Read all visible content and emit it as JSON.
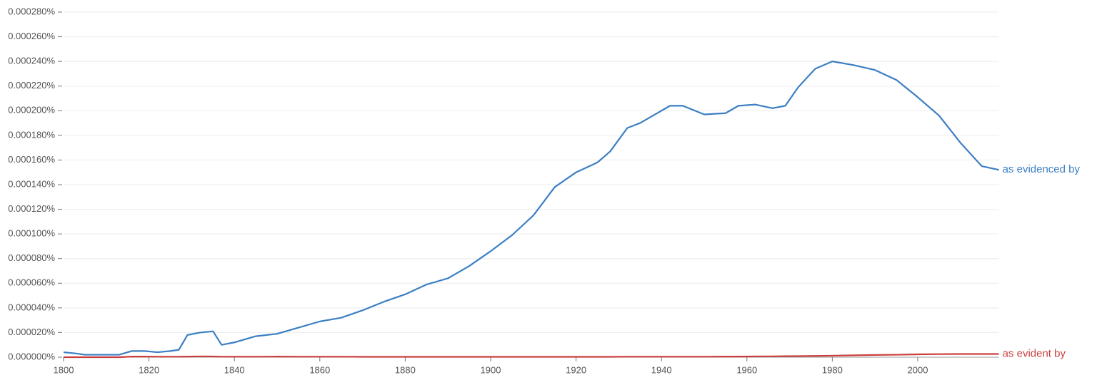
{
  "chart_data": {
    "type": "line",
    "x": [
      1800,
      1803,
      1805,
      1810,
      1813,
      1816,
      1819,
      1822,
      1825,
      1827,
      1829,
      1832,
      1835,
      1837,
      1840,
      1845,
      1850,
      1855,
      1860,
      1865,
      1870,
      1875,
      1880,
      1885,
      1890,
      1895,
      1900,
      1905,
      1910,
      1915,
      1920,
      1925,
      1928,
      1932,
      1935,
      1938,
      1942,
      1945,
      1950,
      1955,
      1958,
      1962,
      1966,
      1969,
      1972,
      1976,
      1980,
      1985,
      1990,
      1995,
      2000,
      2005,
      2010,
      2015,
      2019
    ],
    "series": [
      {
        "name": "as evidenced by",
        "color": "#3b7fc4",
        "values": [
          4e-06,
          3e-06,
          2e-06,
          2e-06,
          2e-06,
          5e-06,
          5e-06,
          4e-06,
          5e-06,
          6e-06,
          1.8e-05,
          2e-05,
          2.1e-05,
          1e-05,
          1.2e-05,
          1.7e-05,
          1.9e-05,
          2.4e-05,
          2.9e-05,
          3.2e-05,
          3.8e-05,
          4.5e-05,
          5.1e-05,
          5.9e-05,
          6.4e-05,
          7.4e-05,
          8.6e-05,
          9.9e-05,
          0.000115,
          0.000138,
          0.00015,
          0.000158,
          0.000167,
          0.000186,
          0.00019,
          0.000196,
          0.000204,
          0.000204,
          0.000197,
          0.000198,
          0.000204,
          0.000205,
          0.000202,
          0.000204,
          0.000219,
          0.000234,
          0.00024,
          0.000237,
          0.000233,
          0.000225,
          0.000211,
          0.000196,
          0.000174,
          0.000155,
          0.000152
        ]
      },
      {
        "name": "as evident by",
        "color": "#cc3e3e",
        "values": [
          0,
          0,
          0,
          0,
          0,
          5e-07,
          5e-07,
          4e-07,
          4e-07,
          4e-07,
          5e-07,
          6e-07,
          6e-07,
          4e-07,
          4e-07,
          4e-07,
          5e-07,
          4e-07,
          4e-07,
          4e-07,
          3e-07,
          3e-07,
          3e-07,
          3e-07,
          3e-07,
          3e-07,
          3e-07,
          3e-07,
          3e-07,
          3e-07,
          3e-07,
          3e-07,
          3e-07,
          4e-07,
          4e-07,
          4e-07,
          4e-07,
          4e-07,
          4e-07,
          5e-07,
          5e-07,
          6e-07,
          7e-07,
          8e-07,
          9e-07,
          1e-06,
          1.2e-06,
          1.5e-06,
          1.8e-06,
          2e-06,
          2.3e-06,
          2.5e-06,
          2.6e-06,
          2.6e-06,
          2.6e-06
        ]
      }
    ],
    "xlim": [
      1800,
      2019
    ],
    "xticks": [
      1800,
      1820,
      1840,
      1860,
      1880,
      1900,
      1920,
      1940,
      1960,
      1980,
      2000
    ],
    "ylim": [
      0,
      0.00028
    ],
    "yticks": [
      {
        "value": 0,
        "label": "0.000000%"
      },
      {
        "value": 2e-05,
        "label": "0.000020%"
      },
      {
        "value": 4e-05,
        "label": "0.000040%"
      },
      {
        "value": 6e-05,
        "label": "0.000060%"
      },
      {
        "value": 8e-05,
        "label": "0.000080%"
      },
      {
        "value": 0.0001,
        "label": "0.000100%"
      },
      {
        "value": 0.00012,
        "label": "0.000120%"
      },
      {
        "value": 0.00014,
        "label": "0.000140%"
      },
      {
        "value": 0.00016,
        "label": "0.000160%"
      },
      {
        "value": 0.00018,
        "label": "0.000180%"
      },
      {
        "value": 0.0002,
        "label": "0.000200%"
      },
      {
        "value": 0.00022,
        "label": "0.000220%"
      },
      {
        "value": 0.00024,
        "label": "0.000240%"
      },
      {
        "value": 0.00026,
        "label": "0.000260%"
      },
      {
        "value": 0.00028,
        "label": "0.000280%"
      }
    ],
    "grid": true
  }
}
